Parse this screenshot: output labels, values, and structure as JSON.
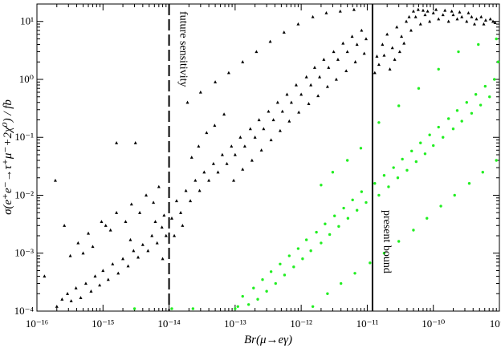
{
  "chart_data": {
    "type": "scatter",
    "xscale": "log",
    "yscale": "log",
    "xlim": [
      1e-16,
      1e-09
    ],
    "ylim": [
      0.0001,
      20
    ],
    "xlabel": "Br(μ→eγ)",
    "ylabel": "σ(e⁺e⁻→τ⁺μ⁻+2χ⁰) / fb",
    "x_ticks": [
      {
        "value": 1e-16,
        "label": "10⁻¹⁶"
      },
      {
        "value": 1e-15,
        "label": "10⁻¹⁵"
      },
      {
        "value": 1e-14,
        "label": "10⁻¹⁴"
      },
      {
        "value": 1e-13,
        "label": "10⁻¹³"
      },
      {
        "value": 1e-12,
        "label": "10⁻¹²"
      },
      {
        "value": 1e-11,
        "label": "10⁻¹¹"
      },
      {
        "value": 1e-10,
        "label": "10⁻¹⁰"
      },
      {
        "value": 1e-09,
        "label": "10⁻⁹"
      }
    ],
    "y_ticks": [
      {
        "value": 0.0001,
        "label": "10⁻⁴"
      },
      {
        "value": 0.001,
        "label": "10⁻³"
      },
      {
        "value": 0.01,
        "label": "10⁻²"
      },
      {
        "value": 0.1,
        "label": "10⁻¹"
      },
      {
        "value": 1,
        "label": "10⁰"
      },
      {
        "value": 10,
        "label": "10¹"
      }
    ],
    "grid": false,
    "annotations": [
      {
        "text": "future sensitivity",
        "x": 1e-14,
        "line_style": "dashed"
      },
      {
        "text": "present bound",
        "x": 1.2e-11,
        "line_style": "solid"
      }
    ],
    "series": [
      {
        "marker": "triangle",
        "color": "#000000",
        "points": [
          [
            2e-16,
            0.00012
          ],
          [
            2.4e-16,
            0.00016
          ],
          [
            2.9e-16,
            0.0002
          ],
          [
            3.3e-16,
            0.00015
          ],
          [
            3.9e-16,
            0.00025
          ],
          [
            4.6e-16,
            0.00017
          ],
          [
            5.5e-16,
            0.0003
          ],
          [
            6.6e-16,
            0.00022
          ],
          [
            7.6e-16,
            0.0004
          ],
          [
            8.9e-16,
            0.00028
          ],
          [
            1e-15,
            0.0005
          ],
          [
            1.2e-15,
            0.00035
          ],
          [
            1.4e-15,
            0.00065
          ],
          [
            1.7e-15,
            0.00045
          ],
          [
            2e-15,
            0.0008
          ],
          [
            2.4e-15,
            0.0006
          ],
          [
            2.9e-15,
            0.0011
          ],
          [
            3.4e-15,
            0.00085
          ],
          [
            4e-15,
            0.0014
          ],
          [
            4.8e-15,
            0.0011
          ],
          [
            5.5e-15,
            0.002
          ],
          [
            6.6e-15,
            0.0015
          ],
          [
            7.8e-15,
            0.0028
          ],
          [
            9e-15,
            0.002
          ],
          [
            2.6e-16,
            0.003
          ],
          [
            3.2e-16,
            0.0009
          ],
          [
            4.2e-16,
            0.0015
          ],
          [
            5e-16,
            0.001
          ],
          [
            6e-16,
            0.0022
          ],
          [
            7e-16,
            0.0013
          ],
          [
            9.5e-16,
            0.0035
          ],
          [
            1.3e-15,
            0.0025
          ],
          [
            1.6e-15,
            0.005
          ],
          [
            2.2e-15,
            0.0035
          ],
          [
            2.7e-15,
            0.007
          ],
          [
            3.6e-15,
            0.005
          ],
          [
            4.5e-15,
            0.01
          ],
          [
            5.8e-15,
            0.0075
          ],
          [
            7e-15,
            0.014
          ],
          [
            8.4e-15,
            0.0045
          ],
          [
            1.9e-16,
            0.018
          ],
          [
            1.3e-16,
            0.0004
          ],
          [
            1.6e-15,
            0.08
          ],
          [
            3.1e-15,
            0.08
          ],
          [
            1.1e-15,
            0.003
          ],
          [
            2.6e-15,
            0.0017
          ],
          [
            6.2e-15,
            0.0035
          ],
          [
            8e-15,
            0.0008
          ],
          [
            1.1e-14,
            0.004
          ],
          [
            1.3e-14,
            0.008
          ],
          [
            1.5e-14,
            0.005
          ],
          [
            1.8e-14,
            0.012
          ],
          [
            2.1e-14,
            0.008
          ],
          [
            2.5e-14,
            0.018
          ],
          [
            2.9e-14,
            0.012
          ],
          [
            3.4e-14,
            0.025
          ],
          [
            4e-14,
            0.018
          ],
          [
            4.7e-14,
            0.035
          ],
          [
            5.5e-14,
            0.025
          ],
          [
            6.4e-14,
            0.05
          ],
          [
            7.5e-14,
            0.035
          ],
          [
            8.8e-14,
            0.07
          ],
          [
            1e-13,
            0.05
          ],
          [
            1.2e-13,
            0.1
          ],
          [
            1.4e-13,
            0.07
          ],
          [
            1.7e-13,
            0.14
          ],
          [
            2e-13,
            0.1
          ],
          [
            2.3e-13,
            0.2
          ],
          [
            2.7e-13,
            0.14
          ],
          [
            3.2e-13,
            0.28
          ],
          [
            3.8e-13,
            0.2
          ],
          [
            4.4e-13,
            0.4
          ],
          [
            5.2e-13,
            0.28
          ],
          [
            6.1e-13,
            0.55
          ],
          [
            7.1e-13,
            0.4
          ],
          [
            8.4e-13,
            0.8
          ],
          [
            1e-12,
            0.55
          ],
          [
            1.2e-12,
            1.1
          ],
          [
            1.4e-12,
            0.8
          ],
          [
            1.6e-12,
            1.6
          ],
          [
            1.9e-12,
            1.1
          ],
          [
            2.2e-12,
            2.2
          ],
          [
            2.6e-12,
            1.6
          ],
          [
            3.1e-12,
            3.0
          ],
          [
            3.6e-12,
            2.2
          ],
          [
            4.3e-12,
            4.2
          ],
          [
            5e-12,
            3.0
          ],
          [
            5.9e-12,
            5.5
          ],
          [
            7e-12,
            4.0
          ],
          [
            8.2e-12,
            7.0
          ],
          [
            9.6e-12,
            5.0
          ],
          [
            1.2e-14,
            0.002
          ],
          [
            1.6e-14,
            0.003
          ],
          [
            2.2e-14,
            0.045
          ],
          [
            2.8e-14,
            0.07
          ],
          [
            3.7e-14,
            0.12
          ],
          [
            4.9e-14,
            0.16
          ],
          [
            6.8e-14,
            0.25
          ],
          [
            9.5e-14,
            0.018
          ],
          [
            1.3e-13,
            0.028
          ],
          [
            1.8e-13,
            0.04
          ],
          [
            2.5e-13,
            0.06
          ],
          [
            3.5e-13,
            0.09
          ],
          [
            4.8e-13,
            0.13
          ],
          [
            6.6e-13,
            0.19
          ],
          [
            9.2e-13,
            0.27
          ],
          [
            1.3e-12,
            0.38
          ],
          [
            1.8e-12,
            0.52
          ],
          [
            2.5e-12,
            0.75
          ],
          [
            3.4e-12,
            1.0
          ],
          [
            4.8e-12,
            1.4
          ],
          [
            6.6e-12,
            2.0
          ],
          [
            9e-12,
            2.8
          ],
          [
            1.9e-14,
            0.4
          ],
          [
            3e-14,
            0.6
          ],
          [
            5e-14,
            0.9
          ],
          [
            8e-14,
            1.3
          ],
          [
            1.3e-13,
            2.0
          ],
          [
            2.1e-13,
            3.0
          ],
          [
            3.4e-13,
            4.5
          ],
          [
            5.5e-13,
            6.5
          ],
          [
            9e-13,
            9.0
          ],
          [
            1.5e-12,
            12.0
          ],
          [
            2.4e-12,
            14.0
          ],
          [
            3.9e-12,
            15.0
          ],
          [
            6.3e-12,
            16.0
          ],
          [
            1.4e-11,
            2.5
          ],
          [
            1.7e-11,
            4.0
          ],
          [
            2e-11,
            6.0
          ],
          [
            2.4e-11,
            3.5
          ],
          [
            2.8e-11,
            8.0
          ],
          [
            3.3e-11,
            5.5
          ],
          [
            3.9e-11,
            10.0
          ],
          [
            4.6e-11,
            7.0
          ],
          [
            5.4e-11,
            12.0
          ],
          [
            6.4e-11,
            9.0
          ],
          [
            7.5e-11,
            13.0
          ],
          [
            8.8e-11,
            10.0
          ],
          [
            1e-10,
            14.0
          ],
          [
            1.2e-10,
            11.0
          ],
          [
            1.4e-10,
            13.0
          ],
          [
            1.7e-10,
            10.0
          ],
          [
            2e-10,
            13.0
          ],
          [
            2.3e-10,
            11.0
          ],
          [
            2.7e-10,
            12.0
          ],
          [
            3.2e-10,
            10.0
          ],
          [
            3.8e-10,
            12.0
          ],
          [
            4.5e-10,
            11.0
          ],
          [
            5.3e-10,
            12.0
          ],
          [
            6.2e-10,
            10.5
          ],
          [
            7.3e-10,
            11.0
          ],
          [
            8.6e-10,
            9.5
          ],
          [
            1.3e-11,
            1.3
          ],
          [
            1.5e-11,
            1.8
          ],
          [
            1.8e-11,
            2.6
          ],
          [
            2.2e-11,
            1.5
          ],
          [
            2.6e-11,
            2.2
          ],
          [
            3.1e-11,
            3.0
          ],
          [
            3.6e-11,
            4.2
          ],
          [
            4.3e-11,
            12.0
          ],
          [
            5e-11,
            15.0
          ],
          [
            5.9e-11,
            16.0
          ],
          [
            7e-11,
            15.5
          ],
          [
            8.2e-11,
            15.0
          ],
          [
            1.1e-10,
            16.0
          ],
          [
            1.5e-10,
            15.5
          ],
          [
            1.9e-10,
            15.0
          ],
          [
            2.5e-10,
            14.5
          ],
          [
            3.4e-10,
            14.0
          ],
          [
            4.2e-10,
            9.0
          ],
          [
            5.8e-10,
            9.0
          ],
          [
            8e-10,
            10.0
          ]
        ]
      },
      {
        "marker": "circle",
        "color": "#22ee22",
        "points": [
          [
            1.1e-13,
            0.00012
          ],
          [
            1.3e-13,
            0.00018
          ],
          [
            1.6e-13,
            0.00013
          ],
          [
            1.9e-13,
            0.00025
          ],
          [
            2.2e-13,
            0.00016
          ],
          [
            2.6e-13,
            0.00035
          ],
          [
            3e-13,
            0.00022
          ],
          [
            3.5e-13,
            0.00048
          ],
          [
            4.1e-13,
            0.0003
          ],
          [
            4.8e-13,
            0.00065
          ],
          [
            5.6e-13,
            0.00042
          ],
          [
            6.6e-13,
            0.0009
          ],
          [
            7.7e-13,
            0.00058
          ],
          [
            9e-13,
            0.0012
          ],
          [
            1.05e-12,
            0.0008
          ],
          [
            1.2e-12,
            0.0017
          ],
          [
            1.4e-12,
            0.0011
          ],
          [
            1.7e-12,
            0.0023
          ],
          [
            2e-12,
            0.0015
          ],
          [
            2.3e-12,
            0.0032
          ],
          [
            2.7e-12,
            0.0021
          ],
          [
            3.2e-12,
            0.0044
          ],
          [
            3.7e-12,
            0.0029
          ],
          [
            4.4e-12,
            0.006
          ],
          [
            5.1e-12,
            0.004
          ],
          [
            6e-12,
            0.0083
          ],
          [
            7e-12,
            0.0055
          ],
          [
            8.2e-12,
            0.0115
          ],
          [
            9.6e-12,
            0.0075
          ],
          [
            1.3e-11,
            0.016
          ],
          [
            1.5e-11,
            0.01
          ],
          [
            1.8e-11,
            0.022
          ],
          [
            2.1e-11,
            0.014
          ],
          [
            2.5e-11,
            0.03
          ],
          [
            2.9e-11,
            0.02
          ],
          [
            3.4e-11,
            0.042
          ],
          [
            4e-11,
            0.027
          ],
          [
            4.7e-11,
            0.058
          ],
          [
            5.5e-11,
            0.038
          ],
          [
            6.4e-11,
            0.08
          ],
          [
            7.5e-11,
            0.052
          ],
          [
            8.8e-11,
            0.11
          ],
          [
            1e-10,
            0.072
          ],
          [
            1.2e-10,
            0.15
          ],
          [
            1.4e-10,
            0.1
          ],
          [
            1.7e-10,
            0.21
          ],
          [
            2e-10,
            0.14
          ],
          [
            2.3e-10,
            0.29
          ],
          [
            2.7e-10,
            0.19
          ],
          [
            3.2e-10,
            0.4
          ],
          [
            3.8e-10,
            0.26
          ],
          [
            4.4e-10,
            0.55
          ],
          [
            5.2e-10,
            0.36
          ],
          [
            6.1e-10,
            0.76
          ],
          [
            7.1e-10,
            0.5
          ],
          [
            8.4e-10,
            1.0
          ],
          [
            9.6e-10,
            2.0
          ],
          [
            2e-12,
            0.015
          ],
          [
            3e-12,
            0.025
          ],
          [
            5e-12,
            0.04
          ],
          [
            8e-12,
            0.065
          ],
          [
            1.5e-11,
            0.18
          ],
          [
            3e-11,
            0.35
          ],
          [
            6e-11,
            0.7
          ],
          [
            1.2e-10,
            1.5
          ],
          [
            2.4e-10,
            3.0
          ],
          [
            4.8e-10,
            4.0
          ],
          [
            9e-10,
            5.0
          ],
          [
            1.5e-12,
            0.00012
          ],
          [
            2.5e-12,
            0.0002
          ],
          [
            4e-12,
            0.0003
          ],
          [
            6.5e-12,
            0.00045
          ],
          [
            1.1e-11,
            0.00068
          ],
          [
            1.8e-11,
            0.001
          ],
          [
            3e-11,
            0.0016
          ],
          [
            5e-11,
            0.0025
          ],
          [
            8e-11,
            0.004
          ],
          [
            1.3e-10,
            0.0065
          ],
          [
            2.1e-10,
            0.01
          ],
          [
            3.5e-10,
            0.016
          ],
          [
            5.6e-10,
            0.025
          ],
          [
            9e-10,
            0.04
          ],
          [
            3e-15,
            0.00011
          ],
          [
            1.1e-14,
            0.00011
          ],
          [
            2.3e-14,
            0.00011
          ],
          [
            1e-13,
            0.00011
          ]
        ]
      }
    ]
  }
}
